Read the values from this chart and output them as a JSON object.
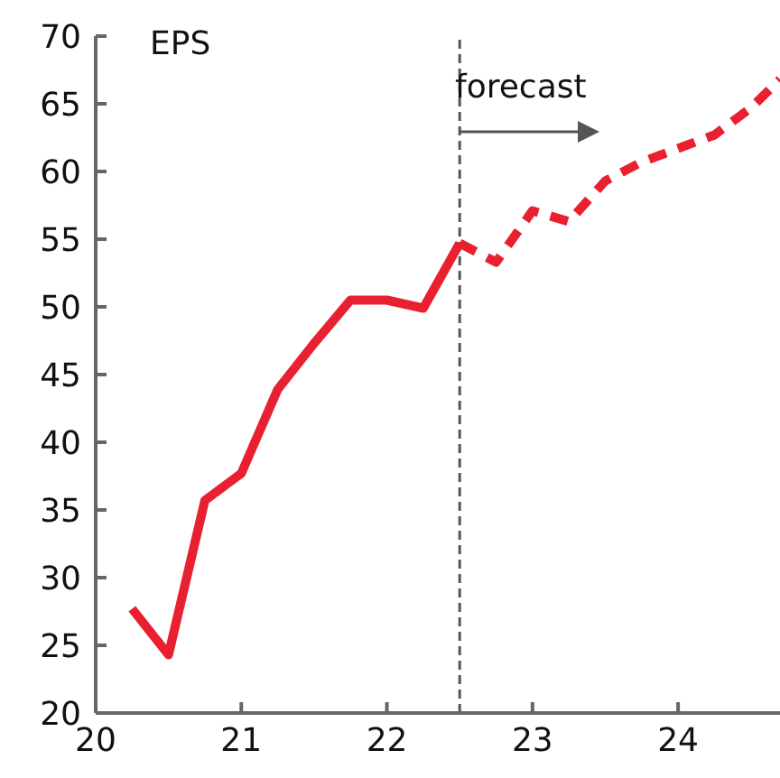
{
  "chart_data": {
    "type": "line",
    "annotations": [
      "EPS",
      "forecast"
    ],
    "series": [
      {
        "color": "#e8202f",
        "line_style": "solid",
        "x": [
          20.25,
          20.5,
          20.75,
          21,
          21.25,
          21.5,
          21.75,
          22,
          22.25,
          22.5
        ],
        "values": [
          27.7,
          24.3,
          35.7,
          37.7,
          43.9,
          47.3,
          50.5,
          50.5,
          49.9,
          54.7
        ]
      },
      {
        "color": "#e8202f",
        "line_style": "dashed",
        "x": [
          22.5,
          22.75,
          23,
          23.25,
          23.5,
          23.75,
          24,
          24.25,
          24.5,
          24.7
        ],
        "values": [
          54.7,
          53.3,
          57.1,
          56.3,
          59.3,
          60.7,
          61.7,
          62.7,
          64.7,
          66.8
        ]
      }
    ],
    "xlim": [
      20,
      24.7
    ],
    "xticks": [
      20,
      21,
      22,
      23,
      24
    ],
    "ylim": [
      20,
      70
    ],
    "yticks": [
      20,
      25,
      30,
      35,
      40,
      45,
      50,
      55,
      60,
      65,
      70
    ],
    "ref_lines": [
      {
        "axis": "x",
        "value": 22.5,
        "color": "#555555",
        "line_style": "dashed"
      }
    ],
    "grid": false,
    "legend": false,
    "marker": "none"
  }
}
